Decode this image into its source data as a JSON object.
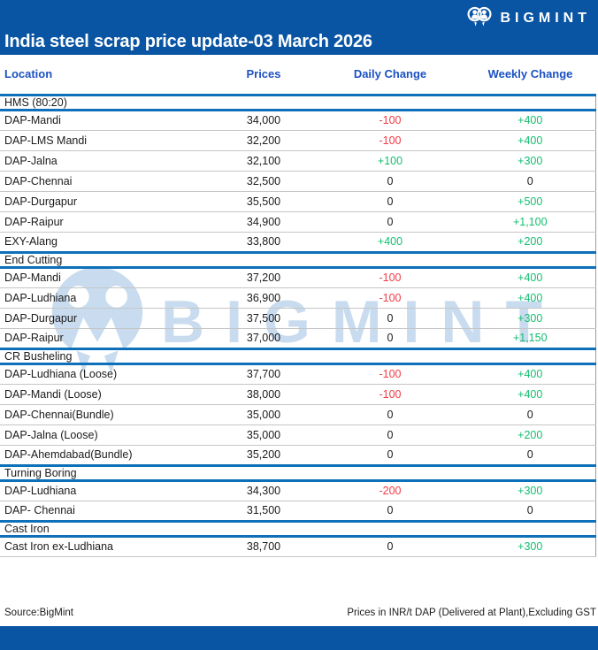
{
  "header": {
    "brand": "BIGMINT",
    "title": "India steel scrap price update-03 March 2026"
  },
  "watermark": {
    "brand": "BIGMINT"
  },
  "chart_data": {
    "type": "table",
    "title": "India steel scrap price update-03 March 2026",
    "columns": [
      "Location",
      "Prices",
      "Daily Change",
      "Weekly Change"
    ],
    "sections": [
      {
        "name": "HMS (80:20)",
        "rows": [
          [
            "DAP-Mandi",
            "34,000",
            "-100",
            "+400"
          ],
          [
            "DAP-LMS Mandi",
            "32,200",
            "-100",
            "+400"
          ],
          [
            "DAP-Jalna",
            "32,100",
            "+100",
            "+300"
          ],
          [
            "DAP-Chennai",
            "32,500",
            "0",
            "0"
          ],
          [
            "DAP-Durgapur",
            "35,500",
            "0",
            "+500"
          ],
          [
            "DAP-Raipur",
            "34,900",
            "0",
            "+1,100"
          ],
          [
            "EXY-Alang",
            "33,800",
            "+400",
            "+200"
          ]
        ]
      },
      {
        "name": "End Cutting",
        "rows": [
          [
            "DAP-Mandi",
            "37,200",
            "-100",
            "+400"
          ],
          [
            "DAP-Ludhiana",
            "36,900",
            "-100",
            "+400"
          ],
          [
            "DAP-Durgapur",
            "37,500",
            "0",
            "+300"
          ],
          [
            "DAP-Raipur",
            "37,000",
            "0",
            "+1,150"
          ]
        ]
      },
      {
        "name": "CR Busheling",
        "rows": [
          [
            "DAP-Ludhiana (Loose)",
            "37,700",
            "-100",
            "+400"
          ],
          [
            "DAP-Mandi (Loose)",
            "38,000",
            "-100",
            "+400"
          ],
          [
            "DAP-Chennai(Bundle)",
            "35,000",
            "0",
            "0"
          ],
          [
            "DAP-Jalna (Loose)",
            "35,000",
            "0",
            "+200"
          ],
          [
            "DAP-Ahemdabad(Bundle)",
            "35,200",
            "0",
            "0"
          ]
        ]
      },
      {
        "name": "Turning Boring",
        "rows": [
          [
            "DAP-Ludhiana",
            "34,300",
            "-200",
            "+300"
          ],
          [
            "DAP- Chennai",
            "31,500",
            "0",
            "0"
          ]
        ]
      },
      {
        "name": "Cast Iron",
        "rows": [
          [
            "Cast Iron ex-Ludhiana",
            "38,700",
            "0",
            "+300"
          ]
        ]
      }
    ],
    "source": "Source:BigMint",
    "units_note": "Prices in INR/t DAP (Delivered at Plant),Excluding GST"
  },
  "colors": {
    "banner_blue": "#0A55A3",
    "bottom_bar_blue": "#0A55A3",
    "column_header_blue": "#1C52C2",
    "section_line_blue": "#0E70B8",
    "row_divider_gray": "#C5C5C5",
    "table_right_border_gray": "#9B9B9B",
    "negative_red": "#F23B47",
    "positive_green": "#12BE6F",
    "text_black": "#1B1B1B",
    "watermark_light_blue": "#C9DCEF"
  }
}
